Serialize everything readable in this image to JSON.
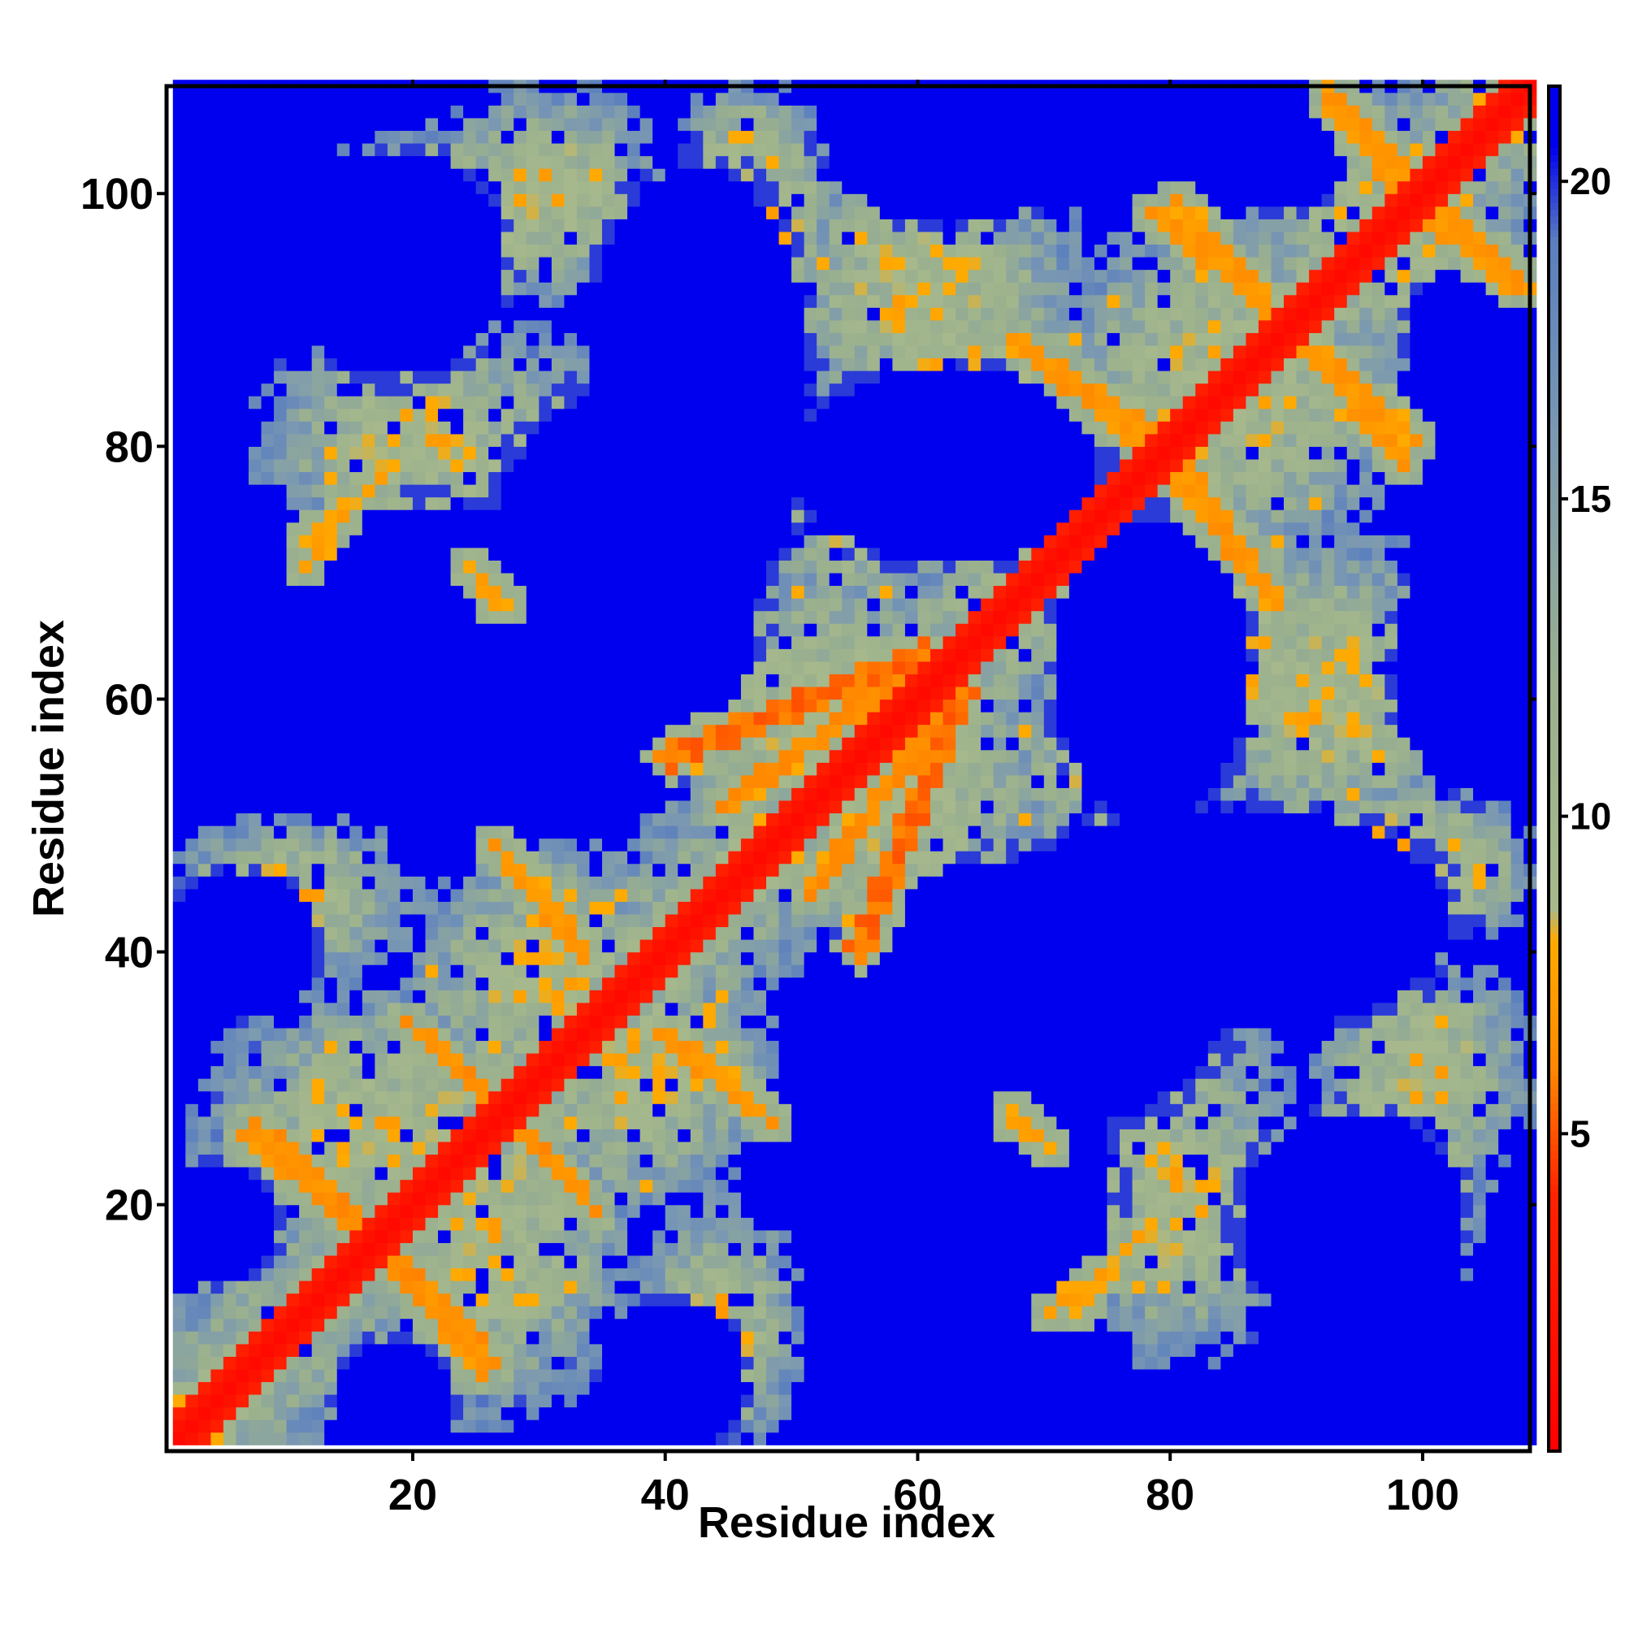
{
  "chart_data": {
    "type": "heatmap",
    "title": "",
    "xlabel": "Residue index",
    "ylabel": "Residue index",
    "n_residues": 108,
    "x_ticks": [
      20,
      40,
      60,
      80,
      100
    ],
    "y_ticks": [
      20,
      40,
      60,
      80,
      100
    ],
    "colorbar": {
      "ticks": [
        5,
        10,
        15,
        20
      ],
      "range": [
        0,
        21.5
      ],
      "orientation": "vertical",
      "placement": "right"
    },
    "color_scale": [
      {
        "value": 0,
        "color": "#ff0000"
      },
      {
        "value": 4,
        "color": "#ff2200"
      },
      {
        "value": 6,
        "color": "#ff8800"
      },
      {
        "value": 8,
        "color": "#ffaa00"
      },
      {
        "value": 8.5,
        "color": "#a7b98c"
      },
      {
        "value": 12,
        "color": "#9ab08e"
      },
      {
        "value": 16,
        "color": "#7a98b2"
      },
      {
        "value": 19,
        "color": "#5b7fbe"
      },
      {
        "value": 20.5,
        "color": "#0000ee"
      }
    ],
    "matrix_description": "symmetric residue-residue distance map: diagonal red (<4), orange contact stripes, grey-green intermediate, blue (>20) voids",
    "contact_segments": [
      {
        "from": [
          1,
          1
        ],
        "to": [
          108,
          108
        ],
        "width": 1.6,
        "value": 1.5
      },
      {
        "from": [
          40,
          55
        ],
        "to": [
          60,
          63
        ],
        "width": 1.8,
        "value": 5.5
      },
      {
        "from": [
          44,
          51
        ],
        "to": [
          58,
          61
        ],
        "width": 1.2,
        "value": 6.5
      },
      {
        "from": [
          7,
          26
        ],
        "to": [
          16,
          18
        ],
        "width": 1.0,
        "value": 6.5
      },
      {
        "from": [
          18,
          15
        ],
        "to": [
          25,
          6
        ],
        "width": 1.0,
        "value": 6.8
      },
      {
        "from": [
          19,
          34
        ],
        "to": [
          29,
          25
        ],
        "width": 1.0,
        "value": 6.5
      },
      {
        "from": [
          28,
          26
        ],
        "to": [
          34,
          19
        ],
        "width": 1.0,
        "value": 6.8
      },
      {
        "from": [
          26,
          48
        ],
        "to": [
          33,
          40
        ],
        "width": 1.0,
        "value": 6.8
      },
      {
        "from": [
          39,
          33
        ],
        "to": [
          47,
          27
        ],
        "width": 1.0,
        "value": 6.8
      },
      {
        "from": [
          67,
          88
        ],
        "to": [
          79,
          80
        ],
        "width": 1.0,
        "value": 6.8
      },
      {
        "from": [
          79,
          78
        ],
        "to": [
          88,
          67
        ],
        "width": 1.0,
        "value": 6.8
      },
      {
        "from": [
          78,
          98
        ],
        "to": [
          88,
          90
        ],
        "width": 1.0,
        "value": 6.8
      },
      {
        "from": [
          90,
          88
        ],
        "to": [
          99,
          80
        ],
        "width": 1.0,
        "value": 6.8
      },
      {
        "from": [
          92,
          108
        ],
        "to": [
          99,
          100
        ],
        "width": 1.0,
        "value": 6.8
      },
      {
        "from": [
          98,
          99
        ],
        "to": [
          107,
          92
        ],
        "width": 1.0,
        "value": 6.8
      },
      {
        "from": [
          11,
          72
        ],
        "to": [
          17,
          77
        ],
        "width": 0.7,
        "value": 7.5
      },
      {
        "from": [
          24,
          70
        ],
        "to": [
          26,
          67
        ],
        "width": 0.7,
        "value": 7.5
      },
      {
        "from": [
          67,
          27
        ],
        "to": [
          70,
          24
        ],
        "width": 0.7,
        "value": 7.5
      },
      {
        "from": [
          70,
          11
        ],
        "to": [
          74,
          14
        ],
        "width": 0.7,
        "value": 7.5
      }
    ],
    "near_regions": [
      {
        "center": [
          18,
          25
        ],
        "rx": 17,
        "ry": 13
      },
      {
        "center": [
          25,
          18
        ],
        "rx": 13,
        "ry": 17
      },
      {
        "center": [
          30,
          37
        ],
        "rx": 12,
        "ry": 12
      },
      {
        "center": [
          37,
          30
        ],
        "rx": 12,
        "ry": 12
      },
      {
        "center": [
          52,
          58
        ],
        "rx": 14,
        "ry": 14
      },
      {
        "center": [
          58,
          52
        ],
        "rx": 14,
        "ry": 14
      },
      {
        "center": [
          10,
          44
        ],
        "rx": 11,
        "ry": 7
      },
      {
        "center": [
          44,
          10
        ],
        "rx": 7,
        "ry": 11
      },
      {
        "center": [
          20,
          80
        ],
        "rx": 14,
        "ry": 10
      },
      {
        "center": [
          80,
          20
        ],
        "rx": 10,
        "ry": 14
      },
      {
        "center": [
          26,
          98
        ],
        "rx": 16,
        "ry": 8
      },
      {
        "center": [
          98,
          26
        ],
        "rx": 8,
        "ry": 16
      },
      {
        "center": [
          48,
          98
        ],
        "rx": 6,
        "ry": 10
      },
      {
        "center": [
          98,
          48
        ],
        "rx": 10,
        "ry": 6
      },
      {
        "center": [
          64,
          86
        ],
        "rx": 14,
        "ry": 5
      },
      {
        "center": [
          86,
          64
        ],
        "rx": 5,
        "ry": 14
      },
      {
        "center": [
          84,
          84
        ],
        "rx": 16,
        "ry": 16
      },
      {
        "center": [
          96,
          96
        ],
        "rx": 12,
        "ry": 12
      },
      {
        "center": [
          74,
          28
        ],
        "rx": 16,
        "ry": 10
      },
      {
        "center": [
          28,
          74
        ],
        "rx": 10,
        "ry": 16
      },
      {
        "center": [
          100,
          30
        ],
        "rx": 9,
        "ry": 10
      },
      {
        "center": [
          30,
          100
        ],
        "rx": 10,
        "ry": 9
      },
      {
        "center": [
          92,
          60
        ],
        "rx": 12,
        "ry": 14
      },
      {
        "center": [
          60,
          92
        ],
        "rx": 14,
        "ry": 12
      },
      {
        "center": [
          75,
          55
        ],
        "rx": 10,
        "ry": 10
      },
      {
        "center": [
          55,
          75
        ],
        "rx": 10,
        "ry": 10
      },
      {
        "center": [
          102,
          46
        ],
        "rx": 7,
        "ry": 6
      },
      {
        "center": [
          46,
          102
        ],
        "rx": 6,
        "ry": 7
      }
    ],
    "void_regions": [
      {
        "center": [
          36,
          68
        ],
        "rx": 11,
        "ry": 16
      },
      {
        "center": [
          68,
          36
        ],
        "rx": 16,
        "ry": 11
      },
      {
        "center": [
          84,
          42
        ],
        "rx": 18,
        "ry": 9
      },
      {
        "center": [
          42,
          84
        ],
        "rx": 9,
        "ry": 18
      },
      {
        "center": [
          64,
          20
        ],
        "rx": 11,
        "ry": 12
      },
      {
        "center": [
          20,
          64
        ],
        "rx": 12,
        "ry": 11
      },
      {
        "center": [
          104,
          62
        ],
        "rx": 7,
        "ry": 10
      },
      {
        "center": [
          62,
          104
        ],
        "rx": 10,
        "ry": 7
      },
      {
        "center": [
          62,
          78
        ],
        "rx": 12,
        "ry": 8
      },
      {
        "center": [
          78,
          62
        ],
        "rx": 8,
        "ry": 12
      },
      {
        "center": [
          94,
          18
        ],
        "rx": 9,
        "ry": 9
      },
      {
        "center": [
          18,
          94
        ],
        "rx": 9,
        "ry": 9
      },
      {
        "center": [
          6,
          40
        ],
        "rx": 6,
        "ry": 6
      },
      {
        "center": [
          40,
          6
        ],
        "rx": 6,
        "ry": 6
      },
      {
        "center": [
          4,
          18
        ],
        "rx": 5,
        "ry": 5
      },
      {
        "center": [
          18,
          4
        ],
        "rx": 5,
        "ry": 5
      },
      {
        "center": [
          104,
          88
        ],
        "rx": 6,
        "ry": 6
      },
      {
        "center": [
          88,
          104
        ],
        "rx": 6,
        "ry": 6
      },
      {
        "center": [
          70,
          104
        ],
        "rx": 12,
        "ry": 6
      },
      {
        "center": [
          104,
          70
        ],
        "rx": 6,
        "ry": 12
      }
    ]
  }
}
